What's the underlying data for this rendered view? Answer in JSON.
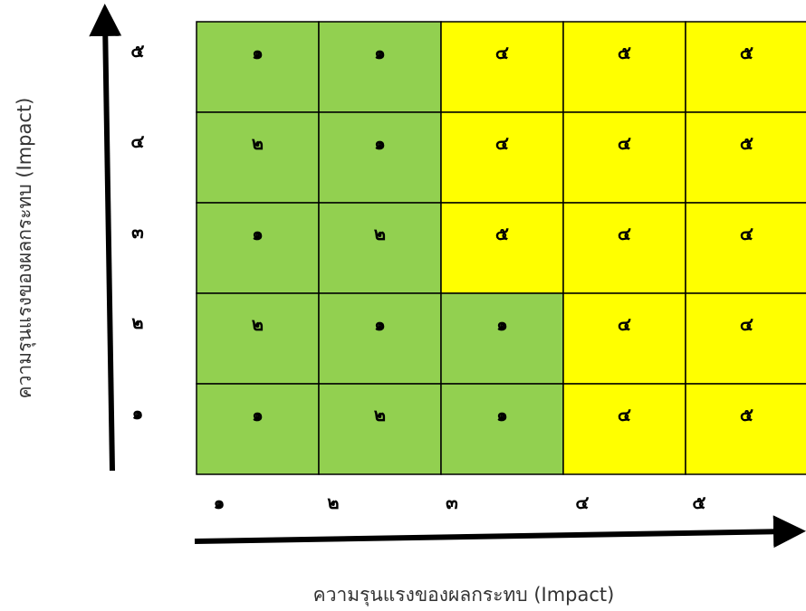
{
  "chart_data": {
    "type": "heatmap",
    "xlabel": "ความรุนแรงของผลกระทบ (Impact)",
    "ylabel": "ความรุนแรงของผลกระทบ (Impact)",
    "x_ticks": [
      "๑",
      "๒",
      "๓",
      "๔",
      "๕"
    ],
    "y_ticks": [
      "๕",
      "๔",
      "๓",
      "๒",
      "๑"
    ],
    "colors": {
      "green": "#92d050",
      "yellow": "#ffff00"
    },
    "rows": [
      {
        "y": "๕",
        "cells": [
          {
            "value": "๑",
            "color": "green"
          },
          {
            "value": "๑",
            "color": "green"
          },
          {
            "value": "๔",
            "color": "yellow"
          },
          {
            "value": "๕",
            "color": "yellow"
          },
          {
            "value": "๕",
            "color": "yellow"
          }
        ]
      },
      {
        "y": "๔",
        "cells": [
          {
            "value": "๒",
            "color": "green"
          },
          {
            "value": "๑",
            "color": "green"
          },
          {
            "value": "๔",
            "color": "yellow"
          },
          {
            "value": "๔",
            "color": "yellow"
          },
          {
            "value": "๕",
            "color": "yellow"
          }
        ]
      },
      {
        "y": "๓",
        "cells": [
          {
            "value": "๑",
            "color": "green"
          },
          {
            "value": "๒",
            "color": "green"
          },
          {
            "value": "๕",
            "color": "yellow"
          },
          {
            "value": "๔",
            "color": "yellow"
          },
          {
            "value": "๔",
            "color": "yellow"
          }
        ]
      },
      {
        "y": "๒",
        "cells": [
          {
            "value": "๒",
            "color": "green"
          },
          {
            "value": "๑",
            "color": "green"
          },
          {
            "value": "๑",
            "color": "green"
          },
          {
            "value": "๔",
            "color": "yellow"
          },
          {
            "value": "๔",
            "color": "yellow"
          }
        ]
      },
      {
        "y": "๑",
        "cells": [
          {
            "value": "๑",
            "color": "green"
          },
          {
            "value": "๒",
            "color": "green"
          },
          {
            "value": "๑",
            "color": "green"
          },
          {
            "value": "๔",
            "color": "yellow"
          },
          {
            "value": "๕",
            "color": "yellow"
          }
        ]
      }
    ]
  }
}
